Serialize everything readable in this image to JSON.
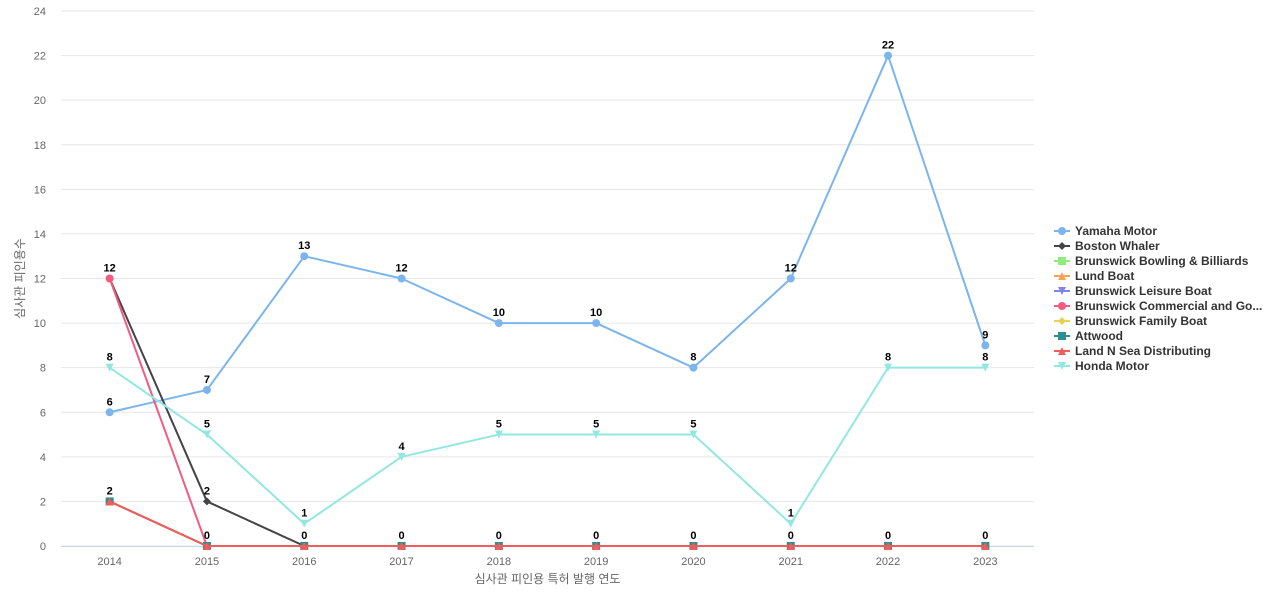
{
  "chart_data": {
    "type": "line",
    "title": "",
    "xlabel": "심사관 피인용 특허 발행 연도",
    "ylabel": "심사관 피인용수",
    "ylim": [
      0,
      24
    ],
    "yticks": [
      0,
      2,
      4,
      6,
      8,
      10,
      12,
      14,
      16,
      18,
      20,
      22,
      24
    ],
    "categories": [
      "2014",
      "2015",
      "2016",
      "2017",
      "2018",
      "2019",
      "2020",
      "2021",
      "2022",
      "2023"
    ],
    "grid": true,
    "legend_position": "right",
    "series": [
      {
        "name": "Yamaha Motor",
        "color": "#7cb5ec",
        "marker": "circle",
        "labels": true,
        "values": [
          6,
          7,
          13,
          12,
          10,
          10,
          8,
          12,
          22,
          9
        ]
      },
      {
        "name": "Boston Whaler",
        "color": "#434348",
        "marker": "diamond",
        "labels": false,
        "values": [
          12,
          2,
          0,
          null,
          null,
          null,
          null,
          null,
          null,
          null
        ]
      },
      {
        "name": "Brunswick Bowling & Billiards",
        "color": "#90ed7d",
        "marker": "square",
        "labels": false,
        "values": [
          null,
          null,
          null,
          null,
          null,
          null,
          null,
          null,
          null,
          null
        ]
      },
      {
        "name": "Lund Boat",
        "color": "#f7a35c",
        "marker": "triangle",
        "labels": false,
        "values": [
          2,
          0,
          null,
          null,
          null,
          null,
          null,
          null,
          null,
          null
        ]
      },
      {
        "name": "Brunswick Leisure Boat",
        "color": "#8085e9",
        "marker": "triangle-down",
        "labels": false,
        "values": [
          null,
          null,
          null,
          null,
          null,
          null,
          null,
          null,
          null,
          null
        ]
      },
      {
        "name": "Brunswick Commercial and Go...",
        "color": "#f15c80",
        "marker": "circle",
        "labels": false,
        "values": [
          12,
          0,
          null,
          null,
          null,
          null,
          null,
          null,
          null,
          null
        ]
      },
      {
        "name": "Brunswick Family Boat",
        "color": "#e4d354",
        "marker": "diamond",
        "labels": false,
        "values": [
          null,
          null,
          null,
          null,
          null,
          null,
          null,
          null,
          null,
          null
        ]
      },
      {
        "name": "Attwood",
        "color": "#2b908f",
        "marker": "square",
        "labels": false,
        "values": [
          2,
          0,
          0,
          0,
          0,
          0,
          0,
          0,
          0,
          0
        ]
      },
      {
        "name": "Land N Sea Distributing",
        "color": "#f45b5b",
        "marker": "triangle",
        "labels": false,
        "values": [
          2,
          0,
          0,
          0,
          0,
          0,
          0,
          0,
          0,
          0
        ]
      },
      {
        "name": "Honda Motor",
        "color": "#91e8e1",
        "marker": "triangle-down",
        "labels": true,
        "values": [
          8,
          5,
          1,
          4,
          5,
          5,
          5,
          1,
          8,
          8
        ]
      }
    ],
    "extra_labels": [
      {
        "x": "2014",
        "y": 12,
        "text": "12"
      },
      {
        "x": "2014",
        "y": 2,
        "text": "2"
      },
      {
        "x": "2015",
        "y": 2,
        "text": "2"
      },
      {
        "x": "2015",
        "y": 0,
        "text": "0"
      },
      {
        "x": "2016",
        "y": 0,
        "text": "0"
      },
      {
        "x": "2017",
        "y": 0,
        "text": "0"
      },
      {
        "x": "2018",
        "y": 0,
        "text": "0"
      },
      {
        "x": "2019",
        "y": 0,
        "text": "0"
      },
      {
        "x": "2020",
        "y": 0,
        "text": "0"
      },
      {
        "x": "2021",
        "y": 0,
        "text": "0"
      },
      {
        "x": "2022",
        "y": 0,
        "text": "0"
      },
      {
        "x": "2023",
        "y": 0,
        "text": "0"
      }
    ]
  }
}
